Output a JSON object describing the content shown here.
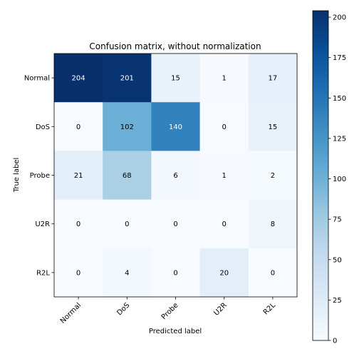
{
  "chart_data": {
    "type": "heatmap",
    "title": "Confusion matrix, without normalization",
    "xlabel": "Predicted label",
    "ylabel": "True label",
    "x_categories": [
      "Normal",
      "DoS",
      "Probe",
      "U2R",
      "R2L"
    ],
    "y_categories": [
      "Normal",
      "DoS",
      "Probe",
      "U2R",
      "R2L"
    ],
    "values": [
      [
        204,
        201,
        15,
        1,
        17
      ],
      [
        0,
        102,
        140,
        0,
        15
      ],
      [
        21,
        68,
        6,
        1,
        2
      ],
      [
        0,
        0,
        0,
        0,
        8
      ],
      [
        0,
        4,
        0,
        20,
        0
      ]
    ],
    "colormap": "Blues",
    "color_range": [
      0,
      204
    ],
    "colorbar_ticks": [
      0,
      25,
      50,
      75,
      100,
      125,
      150,
      175,
      200
    ],
    "x_tick_rotation": "45 degrees",
    "text_color_threshold": 102,
    "text_colors": {
      "light": "#ffffff",
      "dark": "#000000"
    }
  }
}
